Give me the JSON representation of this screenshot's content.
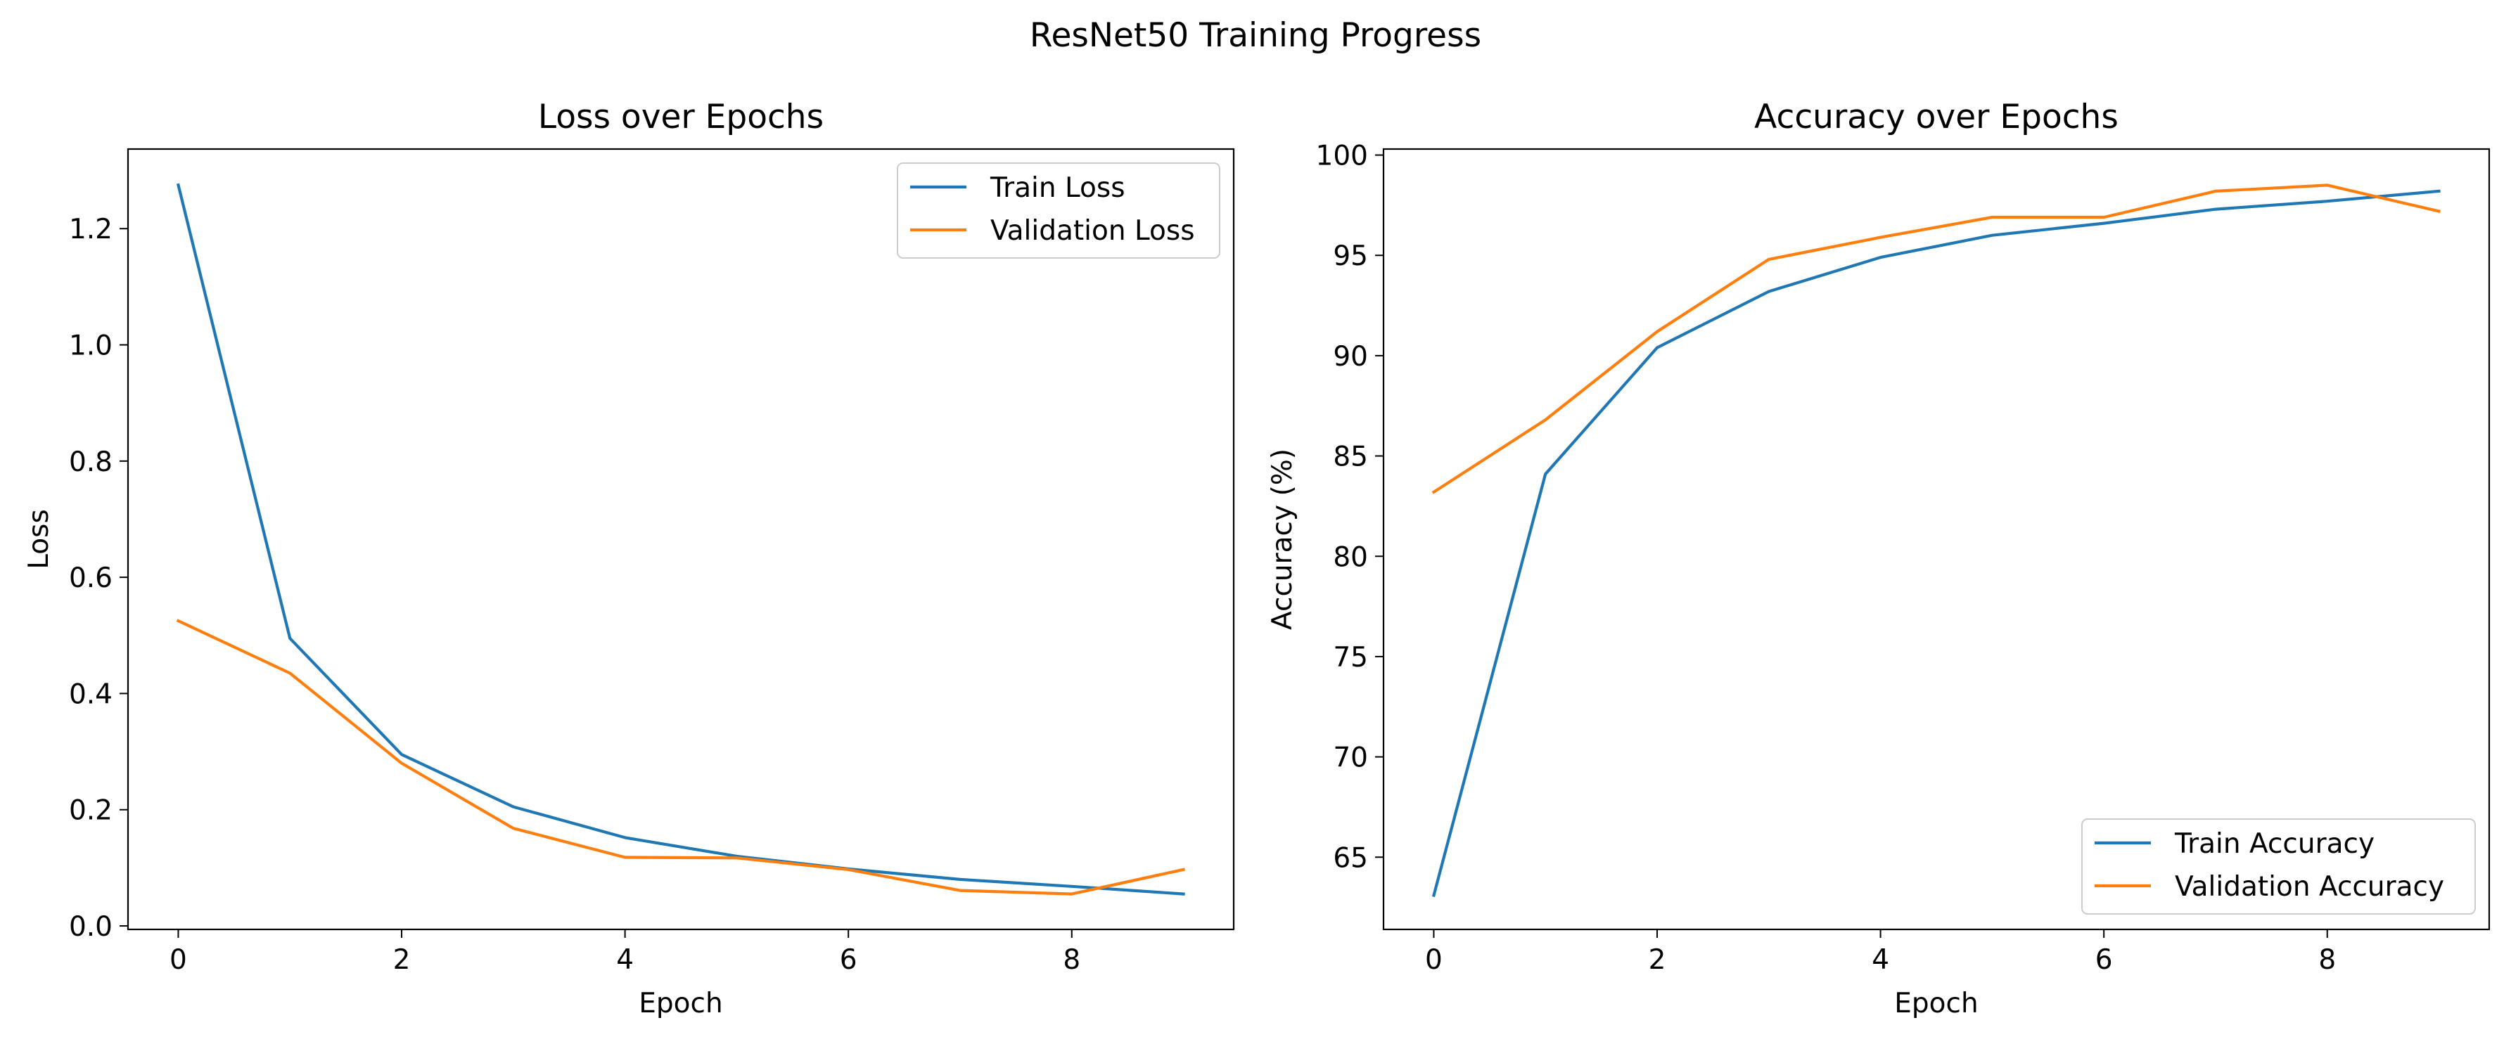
{
  "figure": {
    "suptitle": "ResNet50 Training Progress"
  },
  "colors": {
    "train": "#1f77b4",
    "validation": "#ff7f0e",
    "axes": "#000000",
    "legend_border": "#cccccc"
  },
  "chart_data": [
    {
      "type": "line",
      "title": "Loss over Epochs",
      "xlabel": "Epoch",
      "ylabel": "Loss",
      "x": [
        0,
        1,
        2,
        3,
        4,
        5,
        6,
        7,
        8,
        9
      ],
      "xlim": [
        -0.45,
        9.45
      ],
      "ylim": [
        -0.006,
        1.337
      ],
      "xticks": [
        0,
        2,
        4,
        6,
        8
      ],
      "yticks": [
        0.0,
        0.2,
        0.4,
        0.6,
        0.8,
        1.0,
        1.2
      ],
      "ytick_labels": [
        "0.0",
        "0.2",
        "0.4",
        "0.6",
        "0.8",
        "1.0",
        "1.2"
      ],
      "grid": false,
      "legend_position": "top-right",
      "series": [
        {
          "name": "Train Loss",
          "color_key": "train",
          "values": [
            1.275,
            0.495,
            0.295,
            0.205,
            0.152,
            0.12,
            0.098,
            0.08,
            0.068,
            0.055
          ]
        },
        {
          "name": "Validation Loss",
          "color_key": "validation",
          "values": [
            0.525,
            0.435,
            0.28,
            0.168,
            0.118,
            0.117,
            0.097,
            0.061,
            0.055,
            0.097
          ]
        }
      ]
    },
    {
      "type": "line",
      "title": "Accuracy over Epochs",
      "xlabel": "Epoch",
      "ylabel": "Accuracy (%)",
      "x": [
        0,
        1,
        2,
        3,
        4,
        5,
        6,
        7,
        8,
        9
      ],
      "xlim": [
        -0.45,
        9.45
      ],
      "ylim": [
        61.4,
        100.3
      ],
      "xticks": [
        0,
        2,
        4,
        6,
        8
      ],
      "yticks": [
        65,
        70,
        75,
        80,
        85,
        90,
        95,
        100
      ],
      "ytick_labels": [
        "65",
        "70",
        "75",
        "80",
        "85",
        "90",
        "95",
        "100"
      ],
      "grid": false,
      "legend_position": "bottom-right",
      "series": [
        {
          "name": "Train Accuracy",
          "color_key": "train",
          "values": [
            63.1,
            84.1,
            90.4,
            93.2,
            94.9,
            96.0,
            96.6,
            97.3,
            97.7,
            98.2
          ]
        },
        {
          "name": "Validation Accuracy",
          "color_key": "validation",
          "values": [
            83.2,
            86.8,
            91.2,
            94.8,
            95.9,
            96.9,
            96.9,
            98.2,
            98.5,
            97.2
          ]
        }
      ]
    }
  ]
}
